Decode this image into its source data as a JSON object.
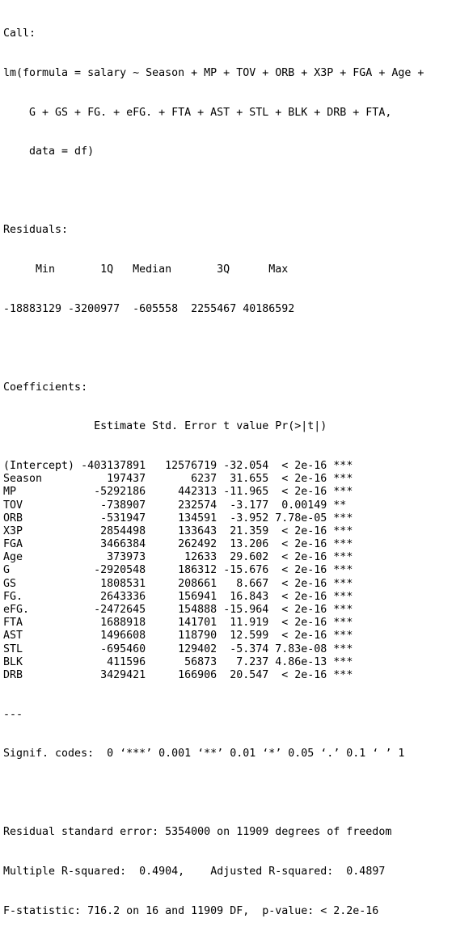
{
  "console": {
    "call_header": "Call:",
    "call_lines": [
      "lm(formula = salary ~ Season + MP + TOV + ORB + X3P + FGA + Age +",
      "    G + GS + FG. + eFG. + FTA + AST + STL + BLK + DRB + FTA,",
      "    data = df)"
    ],
    "residuals_header": "Residuals:",
    "residuals_labels": "     Min       1Q   Median       3Q      Max ",
    "residuals_values": "-18883129 -3200977  -605558  2255467 40186592 ",
    "coefficients_header": "Coefficients:",
    "coef_column_header": "              Estimate Std. Error t value Pr(>|t|)    ",
    "coef_rows": [
      {
        "term": "(Intercept)",
        "estimate": "-403137891",
        "std_error": "12576719",
        "t_value": "-32.054",
        "p_value": "< 2e-16",
        "signif": "***"
      },
      {
        "term": "Season",
        "estimate": "197437",
        "std_error": "6237",
        "t_value": "31.655",
        "p_value": "< 2e-16",
        "signif": "***"
      },
      {
        "term": "MP",
        "estimate": "-5292186",
        "std_error": "442313",
        "t_value": "-11.965",
        "p_value": "< 2e-16",
        "signif": "***"
      },
      {
        "term": "TOV",
        "estimate": "-738907",
        "std_error": "232574",
        "t_value": "-3.177",
        "p_value": "0.00149",
        "signif": "** "
      },
      {
        "term": "ORB",
        "estimate": "-531947",
        "std_error": "134591",
        "t_value": "-3.952",
        "p_value": "7.78e-05",
        "signif": "***"
      },
      {
        "term": "X3P",
        "estimate": "2854498",
        "std_error": "133643",
        "t_value": "21.359",
        "p_value": "< 2e-16",
        "signif": "***"
      },
      {
        "term": "FGA",
        "estimate": "3466384",
        "std_error": "262492",
        "t_value": "13.206",
        "p_value": "< 2e-16",
        "signif": "***"
      },
      {
        "term": "Age",
        "estimate": "373973",
        "std_error": "12633",
        "t_value": "29.602",
        "p_value": "< 2e-16",
        "signif": "***"
      },
      {
        "term": "G",
        "estimate": "-2920548",
        "std_error": "186312",
        "t_value": "-15.676",
        "p_value": "< 2e-16",
        "signif": "***"
      },
      {
        "term": "GS",
        "estimate": "1808531",
        "std_error": "208661",
        "t_value": "8.667",
        "p_value": "< 2e-16",
        "signif": "***"
      },
      {
        "term": "FG.",
        "estimate": "2643336",
        "std_error": "156941",
        "t_value": "16.843",
        "p_value": "< 2e-16",
        "signif": "***"
      },
      {
        "term": "eFG.",
        "estimate": "-2472645",
        "std_error": "154888",
        "t_value": "-15.964",
        "p_value": "< 2e-16",
        "signif": "***"
      },
      {
        "term": "FTA",
        "estimate": "1688918",
        "std_error": "141701",
        "t_value": "11.919",
        "p_value": "< 2e-16",
        "signif": "***"
      },
      {
        "term": "AST",
        "estimate": "1496608",
        "std_error": "118790",
        "t_value": "12.599",
        "p_value": "< 2e-16",
        "signif": "***"
      },
      {
        "term": "STL",
        "estimate": "-695460",
        "std_error": "129402",
        "t_value": "-5.374",
        "p_value": "7.83e-08",
        "signif": "***"
      },
      {
        "term": "BLK",
        "estimate": "411596",
        "std_error": "56873",
        "t_value": "7.237",
        "p_value": "4.86e-13",
        "signif": "***"
      },
      {
        "term": "DRB",
        "estimate": "3429421",
        "std_error": "166906",
        "t_value": "20.547",
        "p_value": "< 2e-16",
        "signif": "***"
      }
    ],
    "separator": "---",
    "signif_codes": "Signif. codes:  0 ‘***’ 0.001 ‘**’ 0.01 ‘*’ 0.05 ‘.’ 0.1 ‘ ’ 1",
    "residual_se": "Residual standard error: 5354000 on 11909 degrees of freedom",
    "r_squared": "Multiple R-squared:  0.4904,\tAdjusted R-squared:  0.4897 ",
    "f_statistic": "F-statistic: 716.2 on 16 and 11909 DF,  p-value: < 2.2e-16"
  }
}
